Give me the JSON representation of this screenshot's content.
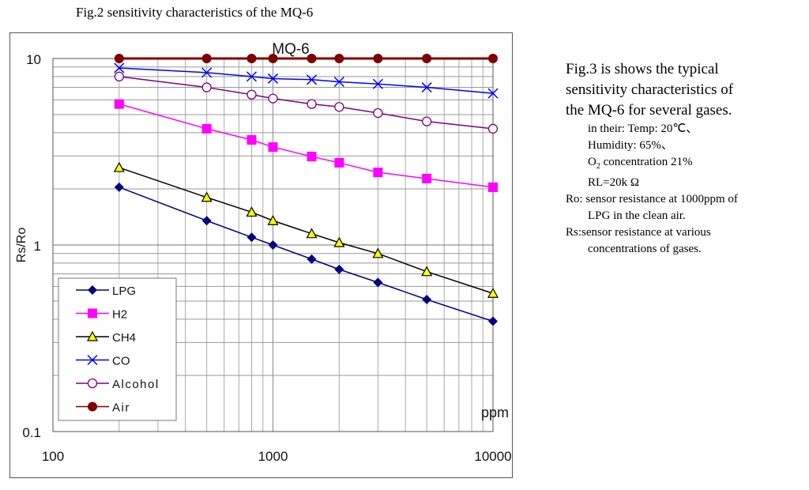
{
  "figure_title": "Fig.2 sensitivity characteristics of the MQ-6",
  "description": {
    "lines_big": [
      "Fig.3 is shows the typical",
      "sensitivity characteristics of",
      "the MQ-6 for several gases."
    ],
    "conditions": {
      "temp": "in their: Temp: 20℃、",
      "humidity": "Humidity: 65%、",
      "o2_prefix": "O",
      "o2_sub": "2",
      "o2_suffix": " concentration 21%",
      "rl": "RL=20k Ω"
    },
    "ro_line1": "Ro: sensor resistance at 1000ppm of",
    "ro_line2": "LPG in the clean air.",
    "rs_line1": "Rs:sensor resistance at various",
    "rs_line2": "concentrations of gases."
  },
  "chart_data": {
    "type": "line",
    "title": "MQ-6",
    "xlabel": "ppm",
    "ylabel": "Rs/Ro",
    "xscale": "log",
    "yscale": "log",
    "xlim": [
      100,
      10000
    ],
    "ylim": [
      0.1,
      10
    ],
    "x_tick_labels": [
      "100",
      "1000",
      "10000"
    ],
    "y_tick_labels": [
      "0.1",
      "1",
      "10"
    ],
    "grid": true,
    "legend_position": "bottom-left",
    "x": [
      200,
      500,
      800,
      1000,
      1500,
      2000,
      3000,
      5000,
      10000
    ],
    "series": [
      {
        "name": "LPG",
        "color": "#000080",
        "marker": "diamond",
        "values": [
          2.04,
          1.35,
          1.1,
          1.0,
          0.84,
          0.74,
          0.63,
          0.51,
          0.39
        ]
      },
      {
        "name": "H2",
        "color": "#ff00ff",
        "marker": "square",
        "values": [
          5.7,
          4.2,
          3.66,
          3.35,
          2.98,
          2.76,
          2.45,
          2.27,
          2.04
        ]
      },
      {
        "name": "CH4",
        "color": "#000000",
        "marker": "triangle",
        "marker_fill": "#ffff00",
        "values": [
          2.6,
          1.8,
          1.5,
          1.35,
          1.15,
          1.03,
          0.9,
          0.72,
          0.55
        ]
      },
      {
        "name": "CO",
        "color": "#0000ff",
        "marker": "x",
        "values": [
          8.9,
          8.4,
          8.0,
          7.8,
          7.7,
          7.5,
          7.3,
          7.0,
          6.5
        ]
      },
      {
        "name": "Alcohol",
        "color": "#800080",
        "marker": "circle-open",
        "values": [
          8.0,
          7.0,
          6.4,
          6.1,
          5.7,
          5.5,
          5.1,
          4.6,
          4.2
        ]
      },
      {
        "name": "Air",
        "color": "#800000",
        "marker": "circle",
        "values": [
          10,
          10,
          10,
          10,
          10,
          10,
          10,
          10,
          10
        ]
      }
    ]
  }
}
